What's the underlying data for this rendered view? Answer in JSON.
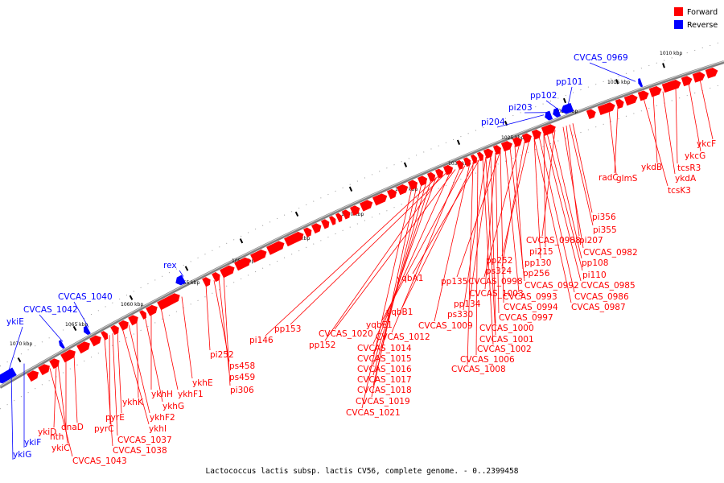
{
  "caption": "Lactococcus lactis subsp. lactis CV56, complete genome. - 0..2399458",
  "legend": [
    {
      "label": "Forward",
      "color": "#ff0000"
    },
    {
      "label": "Reverse",
      "color": "#0000ff"
    }
  ],
  "colors": {
    "forward": "#ff0000",
    "reverse": "#0000ff",
    "backbone": "#808080"
  },
  "ruler": [
    "1010 kbp",
    "1015 kbp",
    "1020 kbp",
    "1025 kbp",
    "1030 kbp",
    "1035 kbp",
    "1040 kbp",
    "1045 kbp",
    "1050 kbp",
    "1055 kbp",
    "1060 kbp",
    "1065 kbp",
    "1070 kbp"
  ],
  "labels_forward": [
    "ykcF",
    "ykcG",
    "tcsR3",
    "ykdB",
    "ykdA",
    "tcsK3",
    "radC",
    "glmS",
    "pi356",
    "pi355",
    "pi207",
    "CVCAS_0982",
    "CVCAS_0988",
    "pi215",
    "pp108",
    "pp130",
    "pi110",
    "pp252",
    "ps324",
    "CVCAS_0985",
    "CVCAS_0998",
    "pp256",
    "CVCAS_0992",
    "CVCAS_0986",
    "pp135",
    "CVCAS_1003",
    "CVCAS_0993",
    "CVCAS_0987",
    "pp134",
    "CVCAS_0994",
    "yqbA1",
    "ps330",
    "CVCAS_0997",
    "yqbB1",
    "CVCAS_1009",
    "CVCAS_1000",
    "CVCAS_1001",
    "yqbE1",
    "CVCAS_1012",
    "CVCAS_1002",
    "CVCAS_1020",
    "CVCAS_1006",
    "pp153",
    "pp152",
    "CVCAS_1014",
    "CVCAS_1008",
    "CVCAS_1015",
    "pi146",
    "CVCAS_1016",
    "CVCAS_1017",
    "CVCAS_1018",
    "CVCAS_1019",
    "CVCAS_1021",
    "ykhE",
    "pi252",
    "ps458",
    "ps459",
    "pi306",
    "ykhF1",
    "ykhH",
    "ykhG",
    "ykhK",
    "ykhF2",
    "ykhI",
    "pyrE",
    "CVCAS_1037",
    "pyrC",
    "CVCAS_1038",
    "ykiD",
    "dnaD",
    "nth",
    "ykiC",
    "CVCAS_1043"
  ],
  "labels_reverse": [
    "CVCAS_0969",
    "pp101",
    "pp102",
    "pi203",
    "pi204",
    "rex",
    "CVCAS_1040",
    "CVCAS_1042",
    "ykiE",
    "ykiF",
    "ykiG"
  ]
}
